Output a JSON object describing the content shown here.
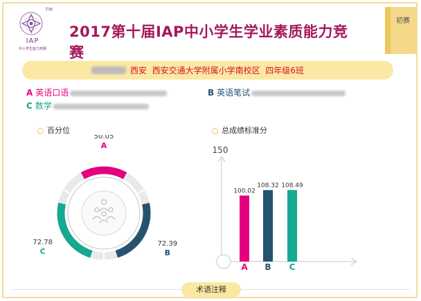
{
  "header": {
    "logo_mark": "IAP",
    "logo_sub": "中小学生能力竞赛",
    "logo_tm": "TM",
    "title": "2017第十届IAP中小学生学业素质能力竞赛",
    "tab_label": "初赛"
  },
  "banner": {
    "student_info": "西安  西安交通大学附属小学南校区  四年级6班"
  },
  "subjects": [
    {
      "letter": "A",
      "name": "英语口语",
      "color": "#e5007f"
    },
    {
      "letter": "B",
      "name": "英语笔试",
      "color": "#25536f"
    },
    {
      "letter": "C",
      "name": "数学",
      "color": "#16a891"
    }
  ],
  "legends": {
    "percentile": "百分位",
    "standard_score": "总成绩标准分"
  },
  "footer": {
    "button_label": "术语注释"
  },
  "colors": {
    "A": "#e5007f",
    "B": "#25536f",
    "C": "#16a891",
    "accent": "#f0c850",
    "title": "#a3195b"
  },
  "icons": {
    "center_icon": "group-people-icon",
    "legend_marker": "ring-dot-icon"
  },
  "chart_data": [
    {
      "type": "pie",
      "legend": "百分位",
      "categories": [
        "A",
        "B",
        "C"
      ],
      "values": [
        50.05,
        72.39,
        72.78
      ],
      "value_labels": [
        "50.05",
        "72.39",
        "72.78"
      ]
    },
    {
      "type": "bar",
      "legend": "总成绩标准分",
      "categories": [
        "A",
        "B",
        "C"
      ],
      "values": [
        100.02,
        108.32,
        108.49
      ],
      "value_labels": [
        "100.02",
        "108.32",
        "108.49"
      ],
      "y_tick_label": "150",
      "ylim": [
        0,
        150
      ]
    }
  ]
}
